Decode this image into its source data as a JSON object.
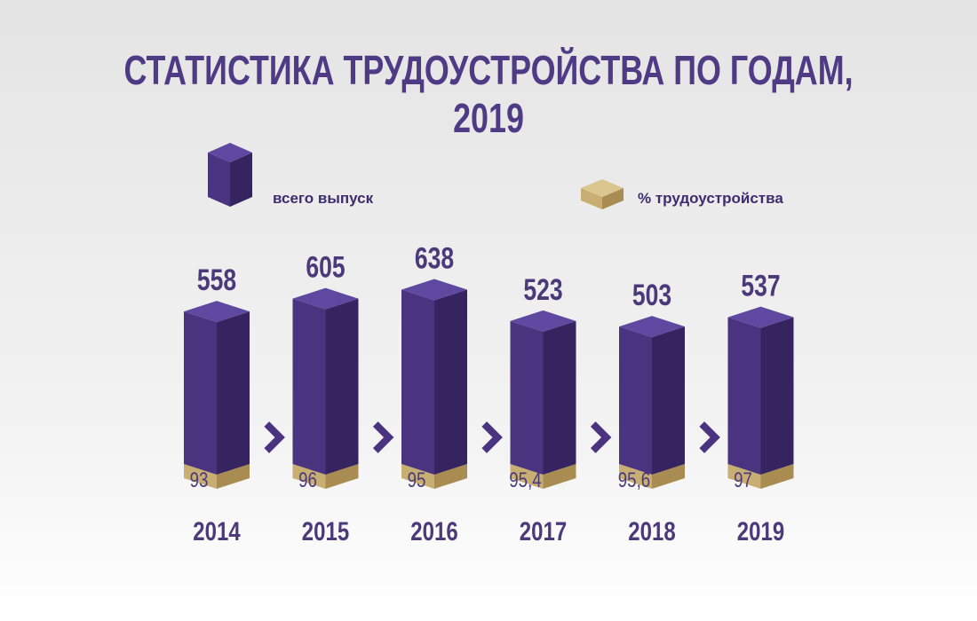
{
  "title": "СТАТИСТИКА ТРУДОУСТРОЙСТВА ПО ГОДАМ, 2019",
  "colors": {
    "title": "#4f3a85",
    "bar_front": "#4a3480",
    "bar_side": "#35245f",
    "bar_top": "#5f48a0",
    "gold_front": "#c8ae72",
    "gold_side": "#a88c52",
    "gold_top": "#dcc68f",
    "chevron": "#4a3480",
    "label": "#4a3a7a"
  },
  "legend": {
    "total_label": "всего выпуск",
    "percent_label": "% трудоустройства"
  },
  "chart_data": {
    "type": "bar",
    "title": "СТАТИСТИКА ТРУДОУСТРОЙСТВА ПО ГОДАМ, 2019",
    "categories": [
      "2014",
      "2015",
      "2016",
      "2017",
      "2018",
      "2019"
    ],
    "series": [
      {
        "name": "всего выпуск",
        "values": [
          558,
          605,
          638,
          523,
          503,
          537
        ],
        "labels": [
          "558",
          "605",
          "638",
          "523",
          "503",
          "537"
        ]
      },
      {
        "name": "% трудоустройства",
        "values": [
          93,
          96,
          95,
          95.4,
          95.6,
          97
        ],
        "labels": [
          "93",
          "96",
          "95",
          "95,4",
          "95,6",
          "97"
        ]
      }
    ],
    "legend_position": "top",
    "grid": false
  }
}
